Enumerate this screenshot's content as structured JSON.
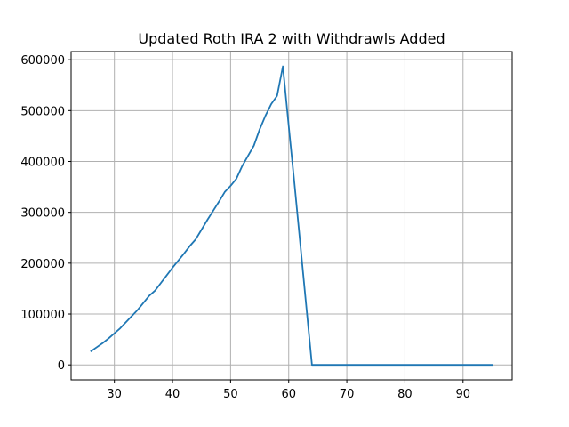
{
  "chart_data": {
    "type": "line",
    "title": "Updated Roth IRA 2 with Withdrawls Added",
    "xlabel": "",
    "ylabel": "",
    "xlim": [
      22.55,
      98.45
    ],
    "ylim": [
      -29400,
      616000
    ],
    "x_ticks": [
      30,
      40,
      50,
      60,
      70,
      80,
      90
    ],
    "y_ticks": [
      0,
      100000,
      200000,
      300000,
      400000,
      500000,
      600000
    ],
    "grid": true,
    "series": [
      {
        "color": "#1f77b4",
        "x": [
          26,
          27,
          28,
          29,
          30,
          31,
          32,
          33,
          34,
          35,
          36,
          37,
          38,
          39,
          40,
          41,
          42,
          43,
          44,
          45,
          46,
          47,
          48,
          49,
          50,
          51,
          52,
          53,
          54,
          55,
          56,
          57,
          58,
          59,
          60,
          61,
          62,
          63,
          64,
          65,
          66,
          67,
          68,
          69,
          70,
          71,
          72,
          73,
          74,
          75,
          76,
          77,
          78,
          79,
          80,
          81,
          82,
          83,
          84,
          85,
          86,
          87,
          88,
          89,
          90,
          91,
          92,
          93,
          94,
          95
        ],
        "y": [
          27000,
          35000,
          43000,
          52000,
          62000,
          72000,
          84000,
          96000,
          108000,
          122000,
          136000,
          146000,
          161000,
          176000,
          191000,
          205000,
          219000,
          234000,
          247000,
          266000,
          285000,
          303000,
          321000,
          340000,
          352000,
          366000,
          391000,
          411000,
          431000,
          463000,
          490000,
          513000,
          529000,
          587000,
          470000,
          355000,
          237000,
          118000,
          0,
          0,
          0,
          0,
          0,
          0,
          0,
          0,
          0,
          0,
          0,
          0,
          0,
          0,
          0,
          0,
          0,
          0,
          0,
          0,
          0,
          0,
          0,
          0,
          0,
          0,
          0,
          0,
          0,
          0,
          0,
          0
        ]
      }
    ]
  }
}
